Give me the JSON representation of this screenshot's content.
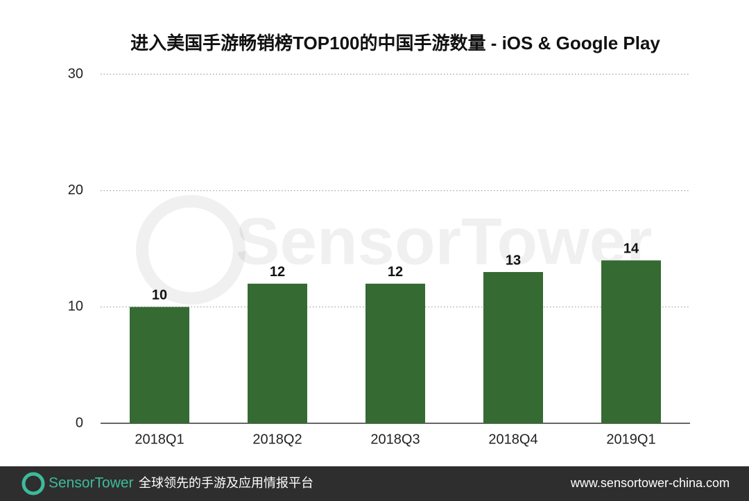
{
  "chart_data": {
    "type": "bar",
    "title": "进入美国手游畅销榜TOP100的中国手游数量 - iOS & Google Play",
    "categories": [
      "2018Q1",
      "2018Q2",
      "2018Q3",
      "2018Q4",
      "2019Q1"
    ],
    "values": [
      10,
      12,
      12,
      13,
      14
    ],
    "color": "#356a32",
    "ylim": [
      0,
      30
    ],
    "yticks": [
      0,
      10,
      20,
      30
    ],
    "grid": true,
    "watermark": "SensorTower"
  },
  "footer": {
    "brand": "SensorTower",
    "tagline": "全球领先的手游及应用情报平台",
    "url": "www.sensortower-china.com"
  }
}
